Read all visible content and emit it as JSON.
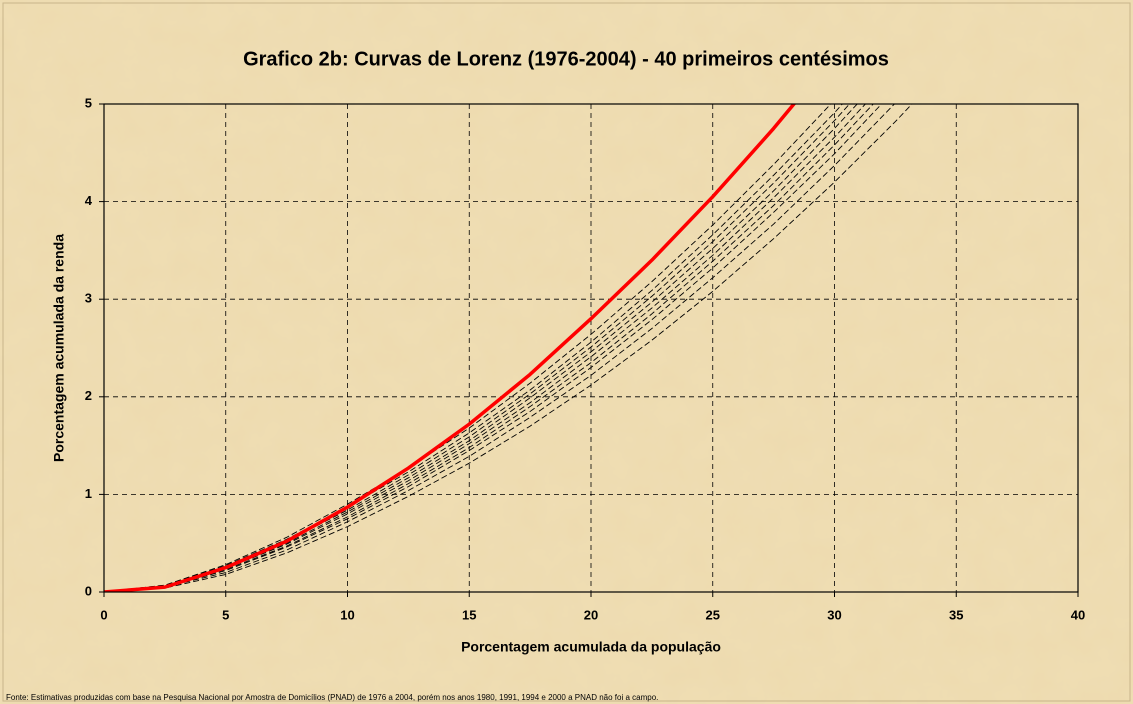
{
  "chart_data": {
    "type": "line",
    "title": "Grafico 2b: Curvas de Lorenz (1976-2004) - 40 primeiros centésimos",
    "x_label": "Porcentagem acumulada da população",
    "y_label": "Porcentagem acumulada da renda",
    "footnote": "Fonte: Estimativas produzidas com base na Pesquisa Nacional por Amostra de Domicílios (PNAD) de 1976 a 2004, porém nos anos 1980, 1991, 1994 e 2000 a PNAD não foi a campo.",
    "x": [
      0,
      2.5,
      5,
      7.5,
      10,
      12.5,
      15,
      17.5,
      20,
      22.5,
      25,
      27.5,
      30,
      32.5,
      35
    ],
    "xlim": [
      0,
      40
    ],
    "xticks": [
      0,
      5,
      10,
      15,
      20,
      25,
      30,
      35,
      40
    ],
    "ylim": [
      0,
      5
    ],
    "yticks": [
      0,
      1,
      2,
      3,
      4,
      5
    ],
    "grid": true,
    "grid_dashed": true,
    "series": [
      {
        "color": "#000000",
        "dashed": true,
        "width": 0.9,
        "values": [
          0,
          0.07,
          0.28,
          0.56,
          0.9,
          1.27,
          1.68,
          2.14,
          2.64,
          3.18,
          3.76,
          4.38,
          5.04,
          null,
          null
        ]
      },
      {
        "color": "#000000",
        "dashed": true,
        "width": 0.9,
        "values": [
          0,
          0.07,
          0.27,
          0.54,
          0.87,
          1.23,
          1.63,
          2.07,
          2.56,
          3.09,
          3.66,
          4.27,
          4.91,
          5.61,
          null
        ]
      },
      {
        "color": "#000000",
        "dashed": true,
        "width": 0.9,
        "values": [
          0,
          0.06,
          0.26,
          0.52,
          0.84,
          1.2,
          1.59,
          2.03,
          2.51,
          3.03,
          3.59,
          4.19,
          4.83,
          5.52,
          null
        ]
      },
      {
        "color": "#000000",
        "dashed": true,
        "width": 0.9,
        "values": [
          0,
          0.06,
          0.25,
          0.5,
          0.82,
          1.17,
          1.55,
          1.99,
          2.46,
          2.97,
          3.52,
          4.11,
          4.75,
          5.42,
          null
        ]
      },
      {
        "color": "#000000",
        "dashed": true,
        "width": 0.9,
        "values": [
          0,
          0.06,
          0.24,
          0.49,
          0.8,
          1.14,
          1.52,
          1.94,
          2.41,
          2.91,
          3.45,
          4.04,
          4.66,
          5.33,
          null
        ]
      },
      {
        "color": "#000000",
        "dashed": true,
        "width": 0.9,
        "values": [
          0,
          0.05,
          0.23,
          0.47,
          0.77,
          1.11,
          1.48,
          1.9,
          2.35,
          2.85,
          3.39,
          3.96,
          4.58,
          5.24,
          null
        ]
      },
      {
        "color": "#000000",
        "dashed": true,
        "width": 0.9,
        "values": [
          0,
          0.05,
          0.22,
          0.46,
          0.75,
          1.08,
          1.45,
          1.85,
          2.3,
          2.79,
          3.32,
          3.89,
          4.49,
          5.15,
          null
        ]
      },
      {
        "color": "#000000",
        "dashed": true,
        "width": 0.9,
        "values": [
          0,
          0.05,
          0.2,
          0.43,
          0.72,
          1.04,
          1.39,
          1.79,
          2.22,
          2.7,
          3.22,
          3.77,
          4.37,
          5.01,
          null
        ]
      },
      {
        "color": "#000000",
        "dashed": true,
        "width": 0.9,
        "values": [
          0,
          0.04,
          0.18,
          0.4,
          0.67,
          0.98,
          1.32,
          1.7,
          2.12,
          2.58,
          3.08,
          3.62,
          4.2,
          4.82,
          5.48
        ]
      },
      {
        "color": "#ff0000",
        "dashed": false,
        "width": 3.5,
        "values": [
          0,
          0.05,
          0.25,
          0.52,
          0.87,
          1.27,
          1.72,
          2.23,
          2.8,
          3.4,
          4.05,
          4.75,
          5.5,
          null,
          null
        ]
      }
    ]
  }
}
